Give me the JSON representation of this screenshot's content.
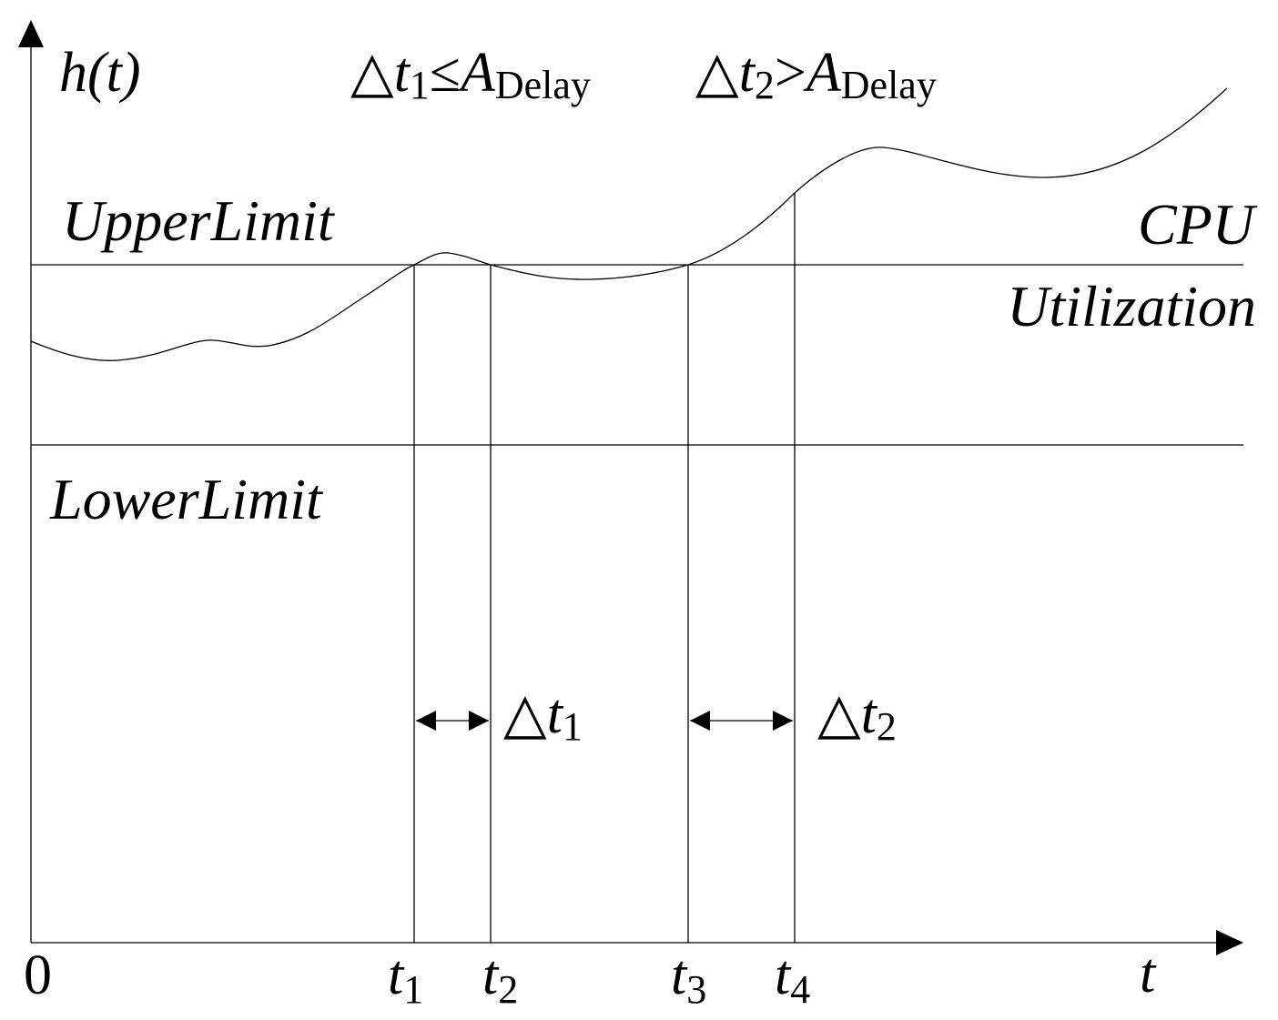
{
  "axes": {
    "y_label": "h(t)",
    "origin": "0",
    "x_label": "t"
  },
  "conditions": [
    {
      "delta": "△",
      "var": "t",
      "sub": "1",
      "relation": "≤",
      "a": "A",
      "a_sub": "Delay"
    },
    {
      "delta": "△",
      "var": "t",
      "sub": "2",
      "relation": ">",
      "a": "A",
      "a_sub": "Delay"
    }
  ],
  "limits": {
    "upper": "UpperLimit",
    "lower": "LowerLimit"
  },
  "curve_label": {
    "line1": "CPU",
    "line2": "Utilization"
  },
  "time_marks": [
    {
      "var": "t",
      "sub": "1"
    },
    {
      "var": "t",
      "sub": "2"
    },
    {
      "var": "t",
      "sub": "3"
    },
    {
      "var": "t",
      "sub": "4"
    }
  ],
  "intervals": [
    {
      "delta": "△",
      "var": "t",
      "sub": "1"
    },
    {
      "delta": "△",
      "var": "t",
      "sub": "2"
    }
  ]
}
